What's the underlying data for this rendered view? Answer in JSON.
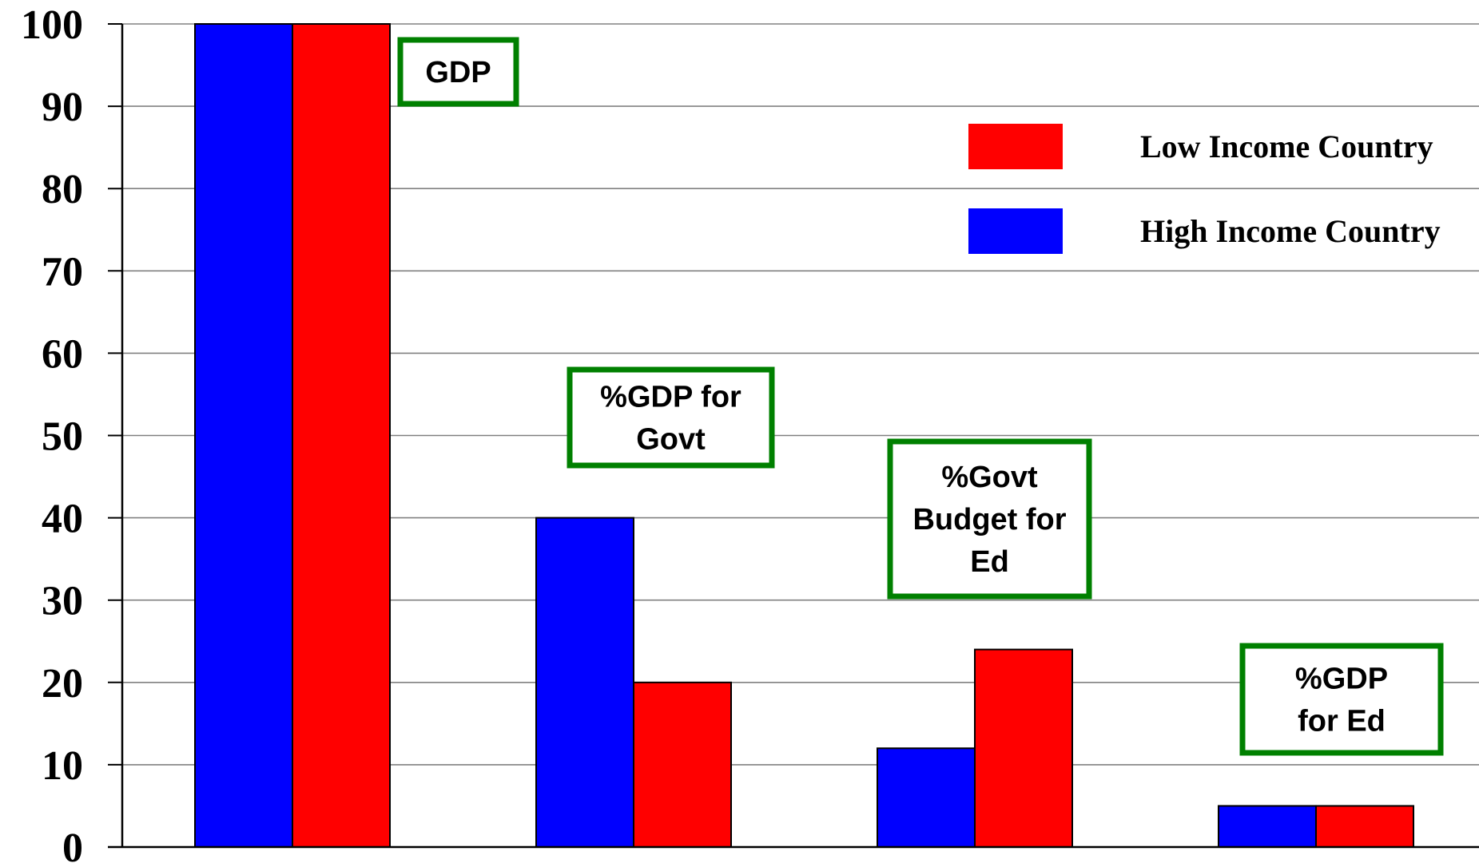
{
  "chart_data": {
    "type": "bar",
    "title": "",
    "xlabel": "",
    "ylabel": "",
    "ylim": [
      0,
      100
    ],
    "yticks": [
      0,
      10,
      20,
      30,
      40,
      50,
      60,
      70,
      80,
      90,
      100
    ],
    "grid": true,
    "legend_position": "top-right",
    "series": [
      {
        "name": "High Income Country",
        "color": "#0000FF",
        "values": [
          100,
          40,
          12,
          5
        ]
      },
      {
        "name": "Low Income Country",
        "color": "#FF0000",
        "values": [
          100,
          20,
          24,
          5
        ]
      }
    ],
    "legend_order": [
      "Low Income Country",
      "High Income Country"
    ],
    "category_annotations": [
      {
        "lines": [
          "GDP"
        ]
      },
      {
        "lines": [
          "%GDP for",
          "Govt"
        ]
      },
      {
        "lines": [
          "%Govt",
          "Budget for",
          "Ed"
        ]
      },
      {
        "lines": [
          "%GDP",
          "for Ed"
        ]
      }
    ],
    "annotation_border_color": "#008000"
  }
}
